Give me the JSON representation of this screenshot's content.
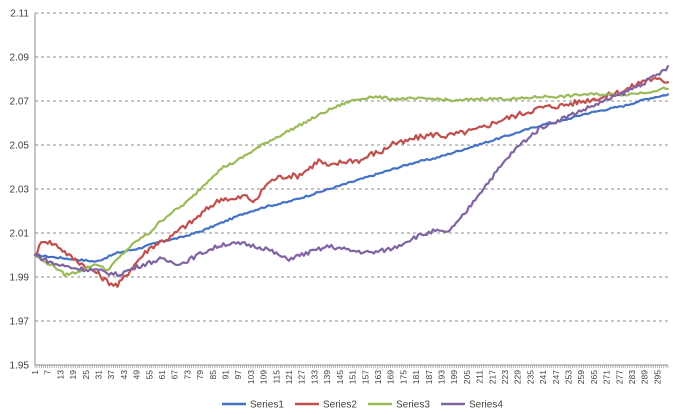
{
  "chart_data": {
    "type": "line",
    "title": "",
    "xlabel": "",
    "ylabel": "",
    "ylim": [
      1.95,
      2.11
    ],
    "y_ticks": [
      "1.95",
      "1.97",
      "1.99",
      "2.01",
      "2.03",
      "2.05",
      "2.07",
      "2.09",
      "2.11"
    ],
    "grid": true,
    "legend": "bottom",
    "x_range": [
      1,
      300
    ],
    "x_tick_labels": [
      "1",
      "7",
      "13",
      "19",
      "25",
      "31",
      "37",
      "43",
      "49",
      "55",
      "61",
      "67",
      "73",
      "79",
      "85",
      "91",
      "97",
      "103",
      "109",
      "115",
      "121",
      "127",
      "133",
      "139",
      "145",
      "151",
      "157",
      "163",
      "169",
      "175",
      "181",
      "187",
      "193",
      "199",
      "205",
      "211",
      "217",
      "223",
      "229",
      "235",
      "241",
      "247",
      "253",
      "259",
      "265",
      "271",
      "277",
      "283",
      "289",
      "295"
    ],
    "series": [
      {
        "name": "Series1",
        "color": "#4472C4",
        "x": [
          1,
          10,
          20,
          30,
          40,
          50,
          60,
          70,
          80,
          90,
          100,
          110,
          120,
          130,
          140,
          150,
          160,
          170,
          180,
          190,
          200,
          210,
          220,
          230,
          240,
          250,
          260,
          270,
          280,
          290,
          300
        ],
        "values": [
          2.0,
          1.999,
          1.998,
          1.997,
          2.001,
          2.003,
          2.006,
          2.008,
          2.011,
          2.015,
          2.019,
          2.022,
          2.024,
          2.027,
          2.03,
          2.033,
          2.036,
          2.039,
          2.042,
          2.044,
          2.047,
          2.05,
          2.053,
          2.056,
          2.059,
          2.061,
          2.064,
          2.066,
          2.068,
          2.071,
          2.073
        ]
      },
      {
        "name": "Series2",
        "color": "#C0504D",
        "x": [
          1,
          5,
          12,
          18,
          25,
          30,
          35,
          40,
          45,
          50,
          55,
          60,
          65,
          70,
          75,
          80,
          85,
          90,
          95,
          100,
          105,
          110,
          115,
          120,
          125,
          130,
          135,
          140,
          145,
          150,
          155,
          160,
          165,
          170,
          175,
          180,
          185,
          190,
          195,
          200,
          210,
          220,
          230,
          240,
          250,
          260,
          270,
          280,
          290,
          300
        ],
        "values": [
          2.0,
          2.007,
          2.004,
          1.999,
          1.995,
          1.992,
          1.988,
          1.986,
          1.992,
          1.998,
          2.003,
          2.006,
          2.008,
          2.012,
          2.015,
          2.019,
          2.023,
          2.026,
          2.025,
          2.027,
          2.024,
          2.032,
          2.035,
          2.036,
          2.036,
          2.039,
          2.043,
          2.04,
          2.042,
          2.043,
          2.043,
          2.046,
          2.047,
          2.051,
          2.051,
          2.053,
          2.054,
          2.055,
          2.054,
          2.055,
          2.057,
          2.061,
          2.064,
          2.067,
          2.068,
          2.07,
          2.072,
          2.075,
          2.08,
          2.079
        ]
      },
      {
        "name": "Series3",
        "color": "#9BBB59",
        "x": [
          1,
          5,
          10,
          15,
          20,
          25,
          30,
          35,
          40,
          45,
          50,
          55,
          60,
          65,
          70,
          75,
          80,
          85,
          90,
          95,
          100,
          110,
          120,
          130,
          140,
          150,
          155,
          160,
          170,
          180,
          190,
          200,
          210,
          220,
          230,
          240,
          250,
          260,
          270,
          280,
          290,
          300
        ],
        "values": [
          2.0,
          1.997,
          1.995,
          1.991,
          1.992,
          1.994,
          1.996,
          1.993,
          1.998,
          2.003,
          2.007,
          2.01,
          2.015,
          2.019,
          2.022,
          2.026,
          2.031,
          2.036,
          2.04,
          2.042,
          2.045,
          2.051,
          2.056,
          2.061,
          2.066,
          2.07,
          2.071,
          2.072,
          2.071,
          2.071,
          2.071,
          2.07,
          2.071,
          2.071,
          2.071,
          2.072,
          2.072,
          2.073,
          2.073,
          2.073,
          2.074,
          2.076
        ]
      },
      {
        "name": "Series4",
        "color": "#8064A2",
        "x": [
          1,
          10,
          20,
          30,
          40,
          50,
          60,
          70,
          80,
          90,
          100,
          110,
          120,
          130,
          140,
          150,
          160,
          170,
          180,
          190,
          195,
          200,
          205,
          210,
          215,
          220,
          225,
          230,
          235,
          240,
          250,
          260,
          270,
          280,
          290,
          300
        ],
        "values": [
          2.0,
          1.996,
          1.994,
          1.993,
          1.991,
          1.995,
          1.998,
          1.996,
          2.001,
          2.005,
          2.005,
          2.003,
          1.998,
          2.001,
          2.004,
          2.002,
          2.001,
          2.003,
          2.008,
          2.011,
          2.01,
          2.014,
          2.02,
          2.027,
          2.033,
          2.039,
          2.045,
          2.05,
          2.054,
          2.058,
          2.062,
          2.066,
          2.07,
          2.074,
          2.079,
          2.085
        ]
      }
    ]
  }
}
